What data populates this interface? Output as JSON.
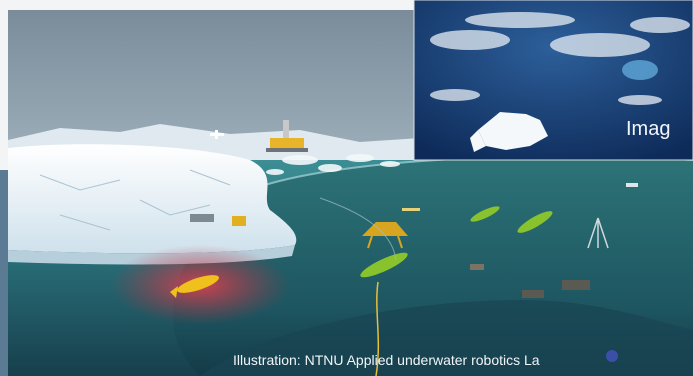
{
  "slide": {
    "photo_caption": "Imag",
    "illustration_credit": "Illustration: NTNU Applied underwater robotics La"
  },
  "colors": {
    "sea_surface": "#2f7f86",
    "deep_water": "#1f4c5a",
    "ice": "#eef5fa",
    "auv_yellow": "#f0c01c",
    "auv_green": "#88c22c",
    "sonar_red": "#d23a4a"
  },
  "icons": [
    "earth-photo",
    "auv-icon",
    "glider-icon",
    "drone-icon",
    "oil-platform-icon",
    "buoy-icon"
  ]
}
